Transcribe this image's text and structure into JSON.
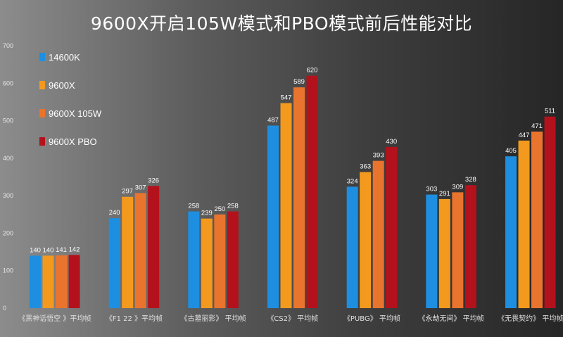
{
  "chart_data": {
    "type": "bar",
    "title": "9600X开启105W模式和PBO模式前后性能对比",
    "xlabel": "",
    "ylabel": "",
    "ylim": [
      0,
      700
    ],
    "yticks": [
      0,
      100,
      200,
      300,
      400,
      500,
      600,
      700
    ],
    "grid": false,
    "legend_position": "top-left",
    "categories": [
      "《黑神话悟空 》平均帧",
      "《F1 22 》平均帧",
      "《古墓丽影》 平均帧",
      "《CS2》 平均帧",
      "《PUBG》 平均帧",
      "《永劫无间》 平均帧",
      "《无畏契约》 平均帧"
    ],
    "series": [
      {
        "name": "14600K",
        "color": "#1e8fe0",
        "values": [
          140,
          240,
          258,
          487,
          324,
          303,
          405
        ]
      },
      {
        "name": "9600X",
        "color": "#f39a1e",
        "values": [
          140,
          297,
          239,
          547,
          363,
          291,
          447
        ]
      },
      {
        "name": "9600X 105W",
        "color": "#e9742e",
        "values": [
          141,
          307,
          250,
          589,
          393,
          309,
          471
        ]
      },
      {
        "name": "9600X PBO",
        "color": "#b3121c",
        "values": [
          142,
          326,
          258,
          620,
          430,
          328,
          511
        ]
      }
    ]
  }
}
